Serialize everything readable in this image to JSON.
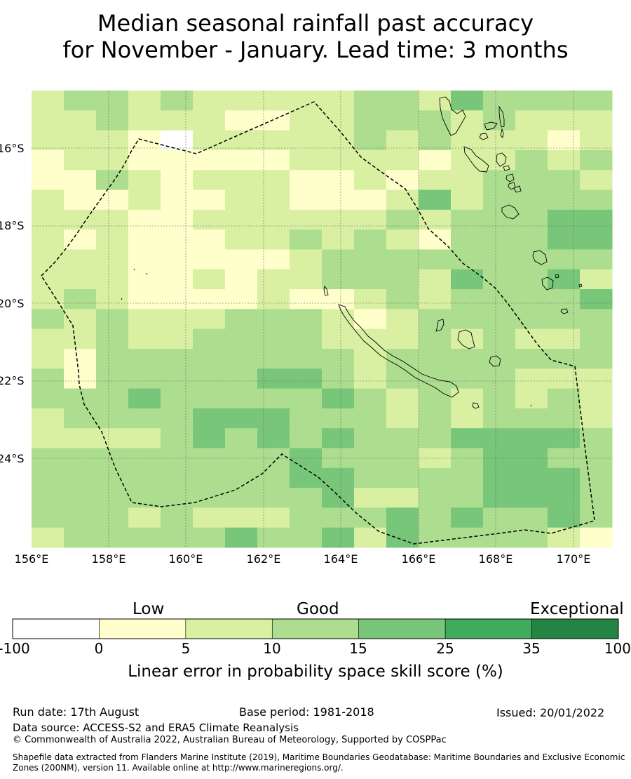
{
  "title": {
    "line1": "Median seasonal rainfall past accuracy",
    "line2": "for November - January. Lead time: 3 months"
  },
  "map": {
    "lat_ticks": [
      "16°S",
      "18°S",
      "20°S",
      "22°S",
      "24°S"
    ],
    "lon_ticks": [
      "156°E",
      "158°E",
      "160°E",
      "162°E",
      "164°E",
      "166°E",
      "168°E",
      "170°E"
    ],
    "colors": [
      "#ffffff",
      "#ffffcc",
      "#d9f0a3",
      "#addd8e",
      "#78c679",
      "#41ab5d",
      "#238443"
    ],
    "grid": [
      [
        2,
        3,
        3,
        2,
        3,
        2,
        2,
        2,
        2,
        2,
        3,
        3,
        2,
        4,
        3,
        3,
        3,
        3
      ],
      [
        2,
        2,
        3,
        2,
        2,
        2,
        1,
        1,
        2,
        2,
        3,
        3,
        3,
        2,
        3,
        2,
        2,
        2
      ],
      [
        2,
        2,
        2,
        1,
        0,
        2,
        2,
        2,
        2,
        2,
        3,
        2,
        3,
        2,
        2,
        2,
        1,
        2
      ],
      [
        1,
        2,
        2,
        1,
        1,
        1,
        1,
        1,
        2,
        2,
        2,
        2,
        1,
        2,
        2,
        3,
        2,
        3
      ],
      [
        1,
        1,
        3,
        2,
        1,
        2,
        2,
        2,
        1,
        1,
        2,
        1,
        2,
        2,
        3,
        3,
        3,
        2
      ],
      [
        2,
        1,
        1,
        2,
        1,
        1,
        2,
        2,
        1,
        1,
        1,
        2,
        4,
        2,
        3,
        3,
        3,
        3
      ],
      [
        2,
        2,
        2,
        1,
        1,
        2,
        2,
        2,
        2,
        2,
        2,
        3,
        2,
        3,
        3,
        3,
        4,
        4
      ],
      [
        2,
        1,
        2,
        1,
        1,
        1,
        2,
        2,
        3,
        2,
        3,
        2,
        1,
        3,
        3,
        3,
        4,
        4
      ],
      [
        2,
        2,
        2,
        1,
        1,
        1,
        1,
        1,
        2,
        3,
        3,
        3,
        3,
        3,
        3,
        3,
        3,
        3
      ],
      [
        2,
        2,
        2,
        1,
        1,
        2,
        1,
        2,
        2,
        3,
        3,
        3,
        2,
        4,
        3,
        3,
        4,
        2
      ],
      [
        2,
        3,
        2,
        1,
        1,
        1,
        1,
        2,
        1,
        1,
        2,
        3,
        2,
        3,
        3,
        3,
        3,
        4
      ],
      [
        3,
        2,
        3,
        2,
        2,
        2,
        3,
        3,
        3,
        2,
        1,
        2,
        3,
        3,
        3,
        3,
        3,
        3
      ],
      [
        2,
        2,
        3,
        2,
        2,
        3,
        3,
        3,
        3,
        2,
        2,
        2,
        3,
        2,
        3,
        2,
        2,
        3
      ],
      [
        2,
        1,
        3,
        3,
        3,
        3,
        3,
        3,
        3,
        3,
        2,
        3,
        3,
        3,
        3,
        3,
        3,
        3
      ],
      [
        3,
        1,
        3,
        3,
        3,
        3,
        3,
        4,
        4,
        3,
        2,
        3,
        3,
        3,
        3,
        2,
        2,
        2
      ],
      [
        3,
        3,
        3,
        4,
        3,
        3,
        3,
        3,
        3,
        4,
        3,
        2,
        3,
        2,
        3,
        2,
        3,
        2
      ],
      [
        2,
        3,
        3,
        3,
        3,
        4,
        4,
        4,
        3,
        3,
        3,
        2,
        3,
        2,
        3,
        3,
        3,
        2
      ],
      [
        2,
        2,
        2,
        2,
        3,
        4,
        3,
        4,
        3,
        4,
        3,
        3,
        3,
        4,
        4,
        4,
        4,
        3
      ],
      [
        3,
        3,
        3,
        3,
        3,
        3,
        3,
        3,
        4,
        3,
        3,
        3,
        2,
        3,
        4,
        4,
        3,
        3
      ],
      [
        3,
        3,
        3,
        3,
        3,
        3,
        3,
        3,
        4,
        4,
        3,
        3,
        3,
        3,
        4,
        4,
        4,
        3
      ],
      [
        3,
        3,
        3,
        3,
        3,
        3,
        3,
        3,
        3,
        4,
        2,
        2,
        3,
        3,
        4,
        4,
        4,
        3
      ],
      [
        3,
        3,
        3,
        2,
        3,
        2,
        2,
        2,
        3,
        3,
        3,
        4,
        3,
        4,
        3,
        3,
        4,
        3
      ],
      [
        2,
        3,
        3,
        3,
        3,
        3,
        4,
        3,
        3,
        4,
        2,
        4,
        3,
        3,
        3,
        3,
        2,
        1
      ]
    ]
  },
  "colorbar": {
    "headings": [
      "Low",
      "Good",
      "Exceptional"
    ],
    "ticks": [
      "-100",
      "0",
      "5",
      "10",
      "15",
      "25",
      "35",
      "100"
    ],
    "label": "Linear error in probability space skill score (%)"
  },
  "footer": {
    "run_date": "Run date: 17th August",
    "base_period": "Base period: 1981-2018",
    "issued": "Issued: 20/01/2022",
    "data_source": "Data source: ACCESS-S2 and ERA5 Climate Reanalysis",
    "copyright": "© Commonwealth of Australia 2022, Australian Bureau of Meteorology, Supported by COSPPac",
    "shapefile": "Shapefile data extracted from Flanders Marine Institute (2019), Maritime Boundaries Geodatabase: Maritime Boundaries and Exclusive Economic Zones (200NM), version 11. Available online at http://www.marineregions.org/."
  }
}
